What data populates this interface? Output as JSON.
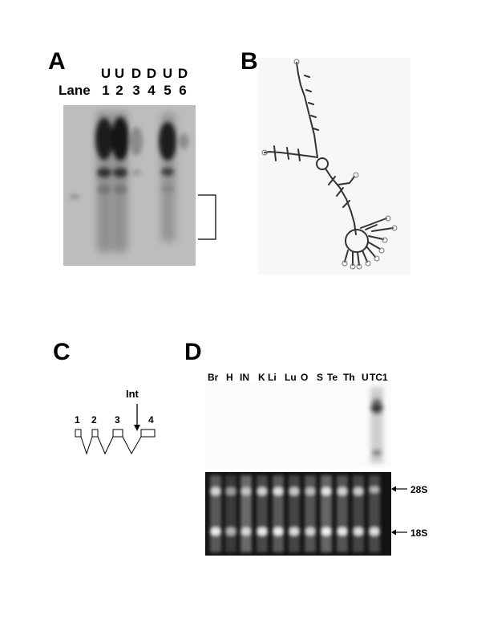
{
  "figure": {
    "panel_a": {
      "letter": "A",
      "lane_label": "Lane",
      "lanes": [
        {
          "treatment": "U",
          "number": "1"
        },
        {
          "treatment": "U",
          "number": "2"
        },
        {
          "treatment": "D",
          "number": "3"
        },
        {
          "treatment": "D",
          "number": "4"
        },
        {
          "treatment": "U",
          "number": "5"
        },
        {
          "treatment": "D",
          "number": "6"
        }
      ]
    },
    "panel_b": {
      "letter": "B"
    },
    "panel_c": {
      "letter": "C",
      "exons": [
        "1",
        "2",
        "3",
        "4"
      ],
      "intron_label": "Int"
    },
    "panel_d": {
      "letter": "D",
      "tissues": [
        "Br",
        "H",
        "IN",
        "K",
        "Li",
        "Lu",
        "O",
        "S",
        "Te",
        "Th",
        "U",
        "TC1"
      ],
      "markers": [
        "28S",
        "18S"
      ]
    }
  }
}
